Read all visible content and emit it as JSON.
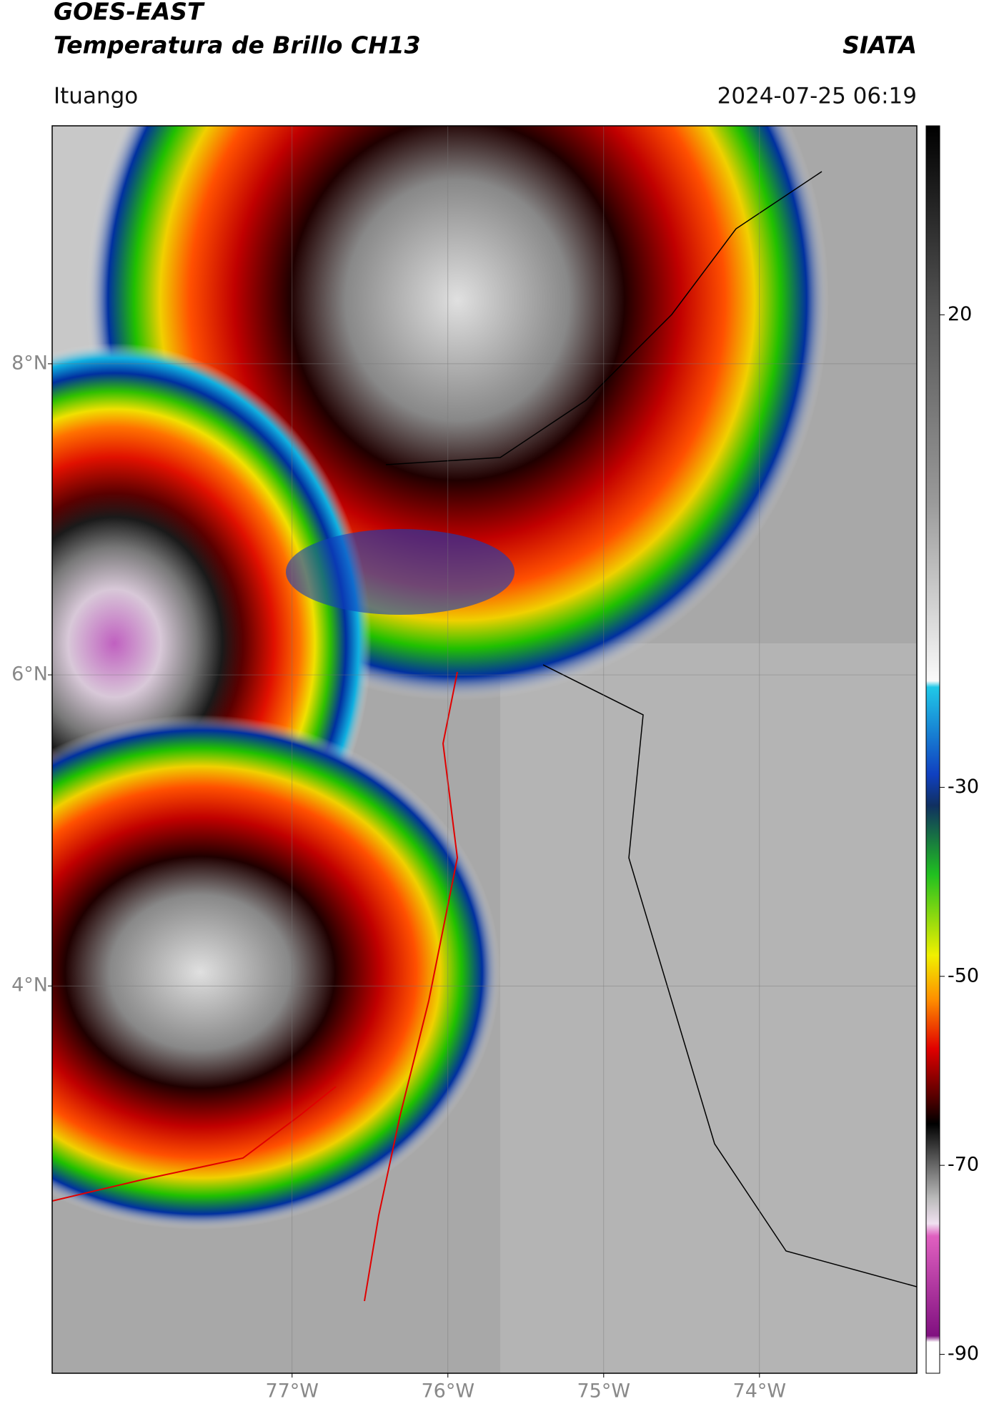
{
  "header": {
    "satellite": "GOES-EAST",
    "product": "Temperatura de Brillo CH13",
    "agency": "SIATA",
    "region": "Ituango",
    "datetime": "2024-07-25 06:19"
  },
  "map": {
    "xlim": [
      -78.54,
      -72.99
    ],
    "ylim": [
      1.51,
      9.53
    ],
    "xticks": [
      {
        "value": -77,
        "label": "77°W"
      },
      {
        "value": -76,
        "label": "76°W"
      },
      {
        "value": -75,
        "label": "75°W"
      },
      {
        "value": -74,
        "label": "74°W"
      }
    ],
    "yticks": [
      {
        "value": 8,
        "label": "8°N"
      },
      {
        "value": 6,
        "label": "6°N"
      },
      {
        "value": 4,
        "label": "4°N"
      }
    ],
    "grid": true
  },
  "colorbar": {
    "lim": [
      -92,
      40
    ],
    "ticks": [
      20,
      -30,
      -50,
      -70,
      -90
    ]
  }
}
